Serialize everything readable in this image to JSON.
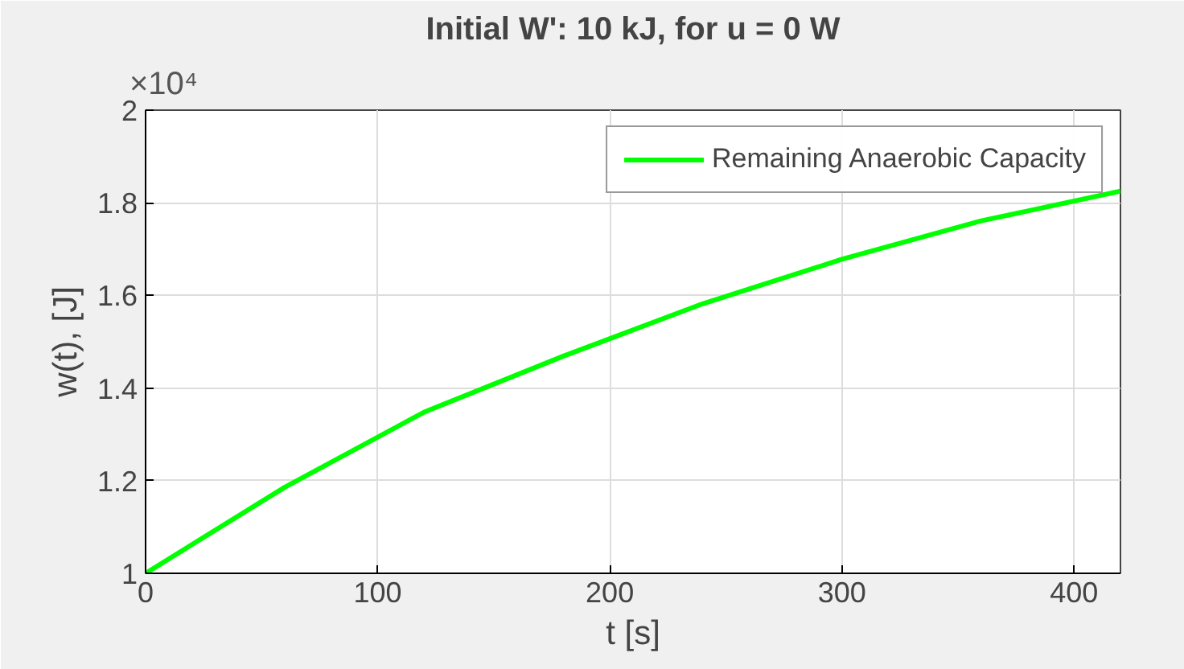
{
  "chart_data": {
    "type": "line",
    "title": "Initial W': 10 kJ, for u = 0 W",
    "xlabel": "t [s]",
    "ylabel": "w(t), [J]",
    "annotations": [
      "×10⁴"
    ],
    "x": [
      0,
      60,
      120,
      180,
      240,
      300,
      360,
      420
    ],
    "series": [
      {
        "name": "Remaining Anaerobic Capacity",
        "color": "#00ff00",
        "values": [
          1.0,
          1.186,
          1.348,
          1.469,
          1.582,
          1.678,
          1.761,
          1.825
        ]
      }
    ],
    "xlim": [
      0,
      420
    ],
    "xticks": [
      0,
      100,
      200,
      300,
      400
    ],
    "ylim": [
      1,
      2
    ],
    "yticks": [
      1,
      1.2,
      1.4,
      1.6,
      1.8,
      2
    ],
    "grid": true,
    "legend": "top right",
    "line_style": "solid",
    "marker": "none"
  }
}
